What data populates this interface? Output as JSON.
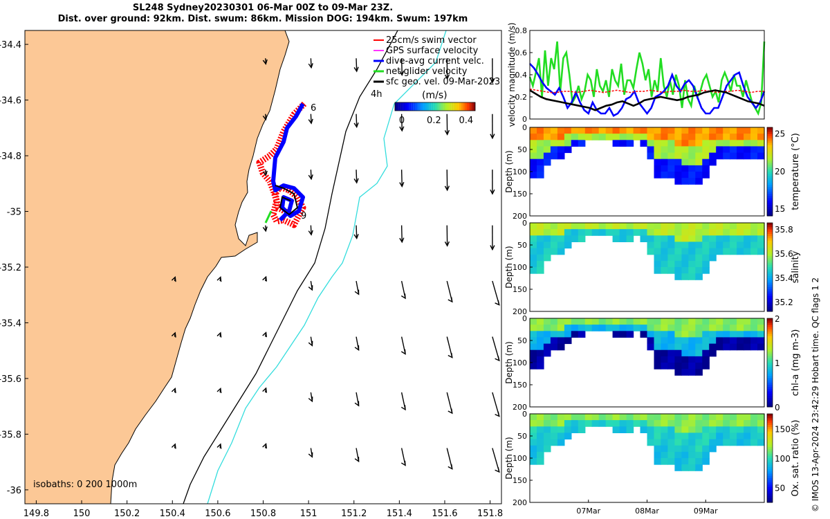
{
  "title_line1": "SL248 Sydney20230301 06-Mar 00Z to 09-Mar 23Z.",
  "title_line2": "Dist. over ground: 92km. Dist. swum: 86km. Mission DOG: 194km. Swum: 197km",
  "copyright": "© IMOS 13-Apr-2024 23:42:29 Hobart time. QC flags 1  2",
  "colors": {
    "land": "#fcc896",
    "track_red": "#ff0000",
    "track_blue": "#0000ff",
    "net_green": "#22dd22",
    "isobath_200": "#000000",
    "isobath_1000": "#33dddd",
    "gps_magenta": "#ff33ff"
  },
  "chart_data": [
    {
      "id": "map",
      "type": "scatter",
      "description_axes": "longitude / latitude",
      "xlim": [
        149.75,
        151.85
      ],
      "ylim": [
        -36.05,
        -34.35
      ],
      "xticks": [
        "149.8",
        "150",
        "150.2",
        "150.4",
        "150.6",
        "150.8",
        "151",
        "151.2",
        "151.4",
        "151.6",
        "151.8"
      ],
      "yticks": [
        "-34.4",
        "-34.6",
        "-34.8",
        "-35",
        "-35.2",
        "-35.4",
        "-35.6",
        "-35.8",
        "-36"
      ],
      "legend": [
        "25cm/s swim vector",
        "GPS surface velocity",
        "dive-avg current velc.",
        "net glider velocity",
        "sfc geo. vel. 09-Mar-2023"
      ],
      "legend_placement": "top-right",
      "speed_colorbar": {
        "label": "(m/s)",
        "ticks": [
          "0",
          "0.2",
          "0.4"
        ],
        "range": [
          0,
          0.5
        ]
      },
      "interval_label": "4h",
      "track_day_labels": [
        "6",
        "9"
      ],
      "isobath_label": "isobaths: 0   200  1000m",
      "geostrophic_arrow_spacing_deg": 0.2
    },
    {
      "id": "velocity",
      "type": "line",
      "ylabel": "velocity magnitude (m/s)",
      "ylim": [
        0,
        0.8
      ],
      "yticks": [
        "0",
        "0.2",
        "0.4",
        "0.6",
        "0.8"
      ],
      "x_range_days": [
        6,
        10
      ],
      "series": [
        {
          "color": "#22dd22",
          "values": [
            0.38,
            0.3,
            0.42,
            0.55,
            0.2,
            0.62,
            0.3,
            0.55,
            0.45,
            0.7,
            0.25,
            0.55,
            0.6,
            0.4,
            0.15,
            0.2,
            0.3,
            0.18,
            0.25,
            0.4,
            0.35,
            0.2,
            0.45,
            0.3,
            0.25,
            0.35,
            0.2,
            0.45,
            0.35,
            0.3,
            0.5,
            0.22,
            0.35,
            0.35,
            0.28,
            0.45,
            0.6,
            0.5,
            0.35,
            0.45,
            0.2,
            0.35,
            0.25,
            0.55,
            0.3,
            0.2,
            0.35,
            0.22,
            0.4,
            0.3,
            0.1,
            0.35,
            0.18,
            0.12,
            0.3,
            0.2,
            0.25,
            0.35,
            0.4,
            0.3,
            0.2,
            0.25,
            0.15,
            0.35,
            0.42,
            0.35,
            0.25,
            0.4,
            0.3,
            0.3,
            0.2,
            0.35,
            0.25,
            0.15,
            0.1,
            0.05,
            0.15,
            0.7
          ]
        },
        {
          "color": "#0000ff",
          "values": [
            0.5,
            0.46,
            0.4,
            0.33,
            0.28,
            0.25,
            0.22,
            0.28,
            0.2,
            0.1,
            0.15,
            0.24,
            0.15,
            0.08,
            0.05,
            0.15,
            0.08,
            0.05,
            0.05,
            0.1,
            0.03,
            0.05,
            0.1,
            0.18,
            0.2,
            0.25,
            0.15,
            0.1,
            0.05,
            0.1,
            0.2,
            0.22,
            0.25,
            0.3,
            0.4,
            0.3,
            0.25,
            0.32,
            0.35,
            0.3,
            0.2,
            0.1,
            0.05,
            0.05,
            0.1,
            0.1,
            0.2,
            0.3,
            0.35,
            0.4,
            0.42,
            0.3,
            0.2,
            0.15,
            0.1,
            0.15,
            0.25
          ]
        },
        {
          "color": "#ff0000",
          "values": [
            0.27,
            0.26,
            0.25,
            0.24,
            0.24,
            0.25,
            0.25,
            0.24,
            0.25,
            0.26,
            0.25,
            0.24,
            0.25,
            0.26,
            0.25,
            0.24,
            0.25,
            0.25,
            0.26,
            0.25,
            0.24,
            0.25,
            0.25,
            0.26,
            0.25,
            0.25,
            0.26,
            0.25,
            0.24,
            0.25,
            0.25,
            0.26,
            0.25,
            0.24,
            0.25,
            0.25
          ]
        },
        {
          "color": "#000000",
          "values": [
            0.26,
            0.23,
            0.2,
            0.18,
            0.17,
            0.16,
            0.15,
            0.14,
            0.13,
            0.12,
            0.11,
            0.1,
            0.08,
            0.1,
            0.12,
            0.13,
            0.15,
            0.16,
            0.14,
            0.12,
            0.14,
            0.17,
            0.18,
            0.19,
            0.2,
            0.19,
            0.18,
            0.17,
            0.18,
            0.2,
            0.21,
            0.22,
            0.24,
            0.25,
            0.26,
            0.25,
            0.24,
            0.22,
            0.2,
            0.18,
            0.16,
            0.15,
            0.14,
            0.12
          ]
        }
      ]
    },
    {
      "id": "temperature",
      "type": "heatmap",
      "ylabel": "Depth (m)",
      "ylim": [
        200,
        0
      ],
      "yticks": [
        "0",
        "50",
        "100",
        "150",
        "200"
      ],
      "colorbar_label": "temperature (°C)",
      "colorbar_ticks": [
        "15",
        "20",
        "25"
      ],
      "colorbar_range": [
        14,
        25.8
      ],
      "surface_value": 24,
      "mid_value": 21.5,
      "deep_value": 16
    },
    {
      "id": "salinity",
      "type": "heatmap",
      "ylabel": "Depth (m)",
      "ylim": [
        200,
        0
      ],
      "yticks": [
        "0",
        "50",
        "100",
        "150",
        "200"
      ],
      "colorbar_label": "salinity",
      "colorbar_ticks": [
        "35.2",
        "35.4",
        "35.6",
        "35.8"
      ],
      "colorbar_range": [
        35.12,
        35.85
      ],
      "surface_value": 35.6,
      "mid_value": 35.45,
      "deep_value": 35.45
    },
    {
      "id": "chla",
      "type": "heatmap",
      "ylabel": "Depth (m)",
      "ylim": [
        200,
        0
      ],
      "yticks": [
        "0",
        "50",
        "100",
        "150",
        "200"
      ],
      "colorbar_label": "chl-a (mg m-3)",
      "colorbar_ticks": [
        "0",
        "1",
        "2"
      ],
      "colorbar_range": [
        0,
        2
      ],
      "surface_value": 1.2,
      "mid_value": 0.8,
      "deep_value": 0.05
    },
    {
      "id": "oxygen",
      "type": "heatmap",
      "ylabel": "Depth (m)",
      "ylim": [
        200,
        0
      ],
      "yticks": [
        "0",
        "50",
        "100",
        "150",
        "200"
      ],
      "xticks": [
        "07Mar",
        "08Mar",
        "09Mar"
      ],
      "colorbar_label": "Ox. sat. ratio (%)",
      "colorbar_ticks": [
        "50",
        "100",
        "150"
      ],
      "colorbar_range": [
        25,
        175
      ],
      "surface_value": 115,
      "mid_value": 95,
      "deep_value": 90
    }
  ]
}
